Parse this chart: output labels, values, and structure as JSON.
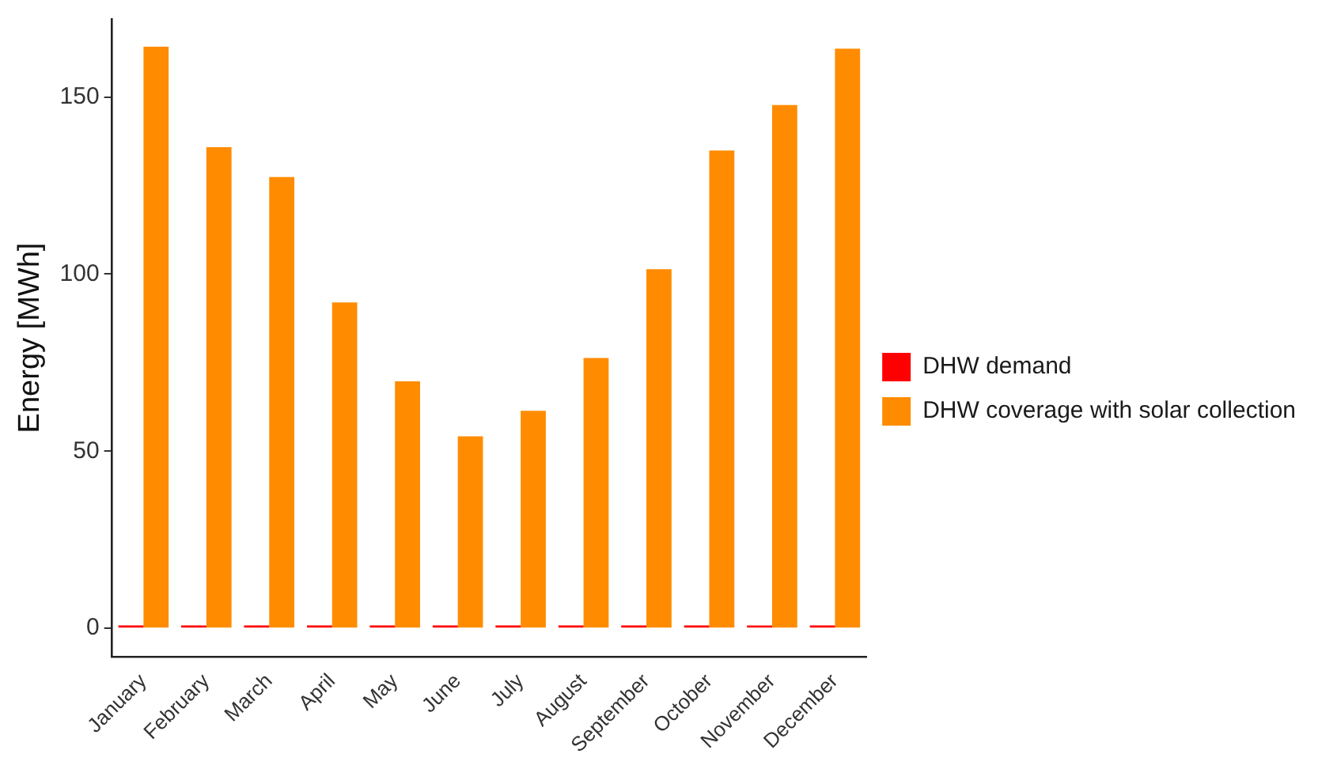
{
  "chart_data": {
    "type": "bar",
    "ylabel": "Energy [MWh]",
    "categories": [
      "January",
      "February",
      "March",
      "April",
      "May",
      "June",
      "July",
      "August",
      "September",
      "October",
      "November",
      "December"
    ],
    "series": [
      {
        "name": "DHW demand",
        "color": "#ff0000",
        "values": [
          0.8,
          0.8,
          0.8,
          0.8,
          0.8,
          0.8,
          0.8,
          0.8,
          0.8,
          0.8,
          0.8,
          0.8
        ]
      },
      {
        "name": "DHW coverage with solar collection",
        "color": "#ff8c00",
        "values": [
          164.2,
          135.8,
          127.4,
          92.0,
          69.7,
          54.2,
          61.4,
          76.3,
          101.4,
          134.9,
          147.7,
          163.6
        ]
      }
    ],
    "ylim": [
      -8,
      172
    ],
    "yticks": [
      0,
      50,
      100,
      150
    ],
    "grid": false,
    "legend": "right"
  }
}
